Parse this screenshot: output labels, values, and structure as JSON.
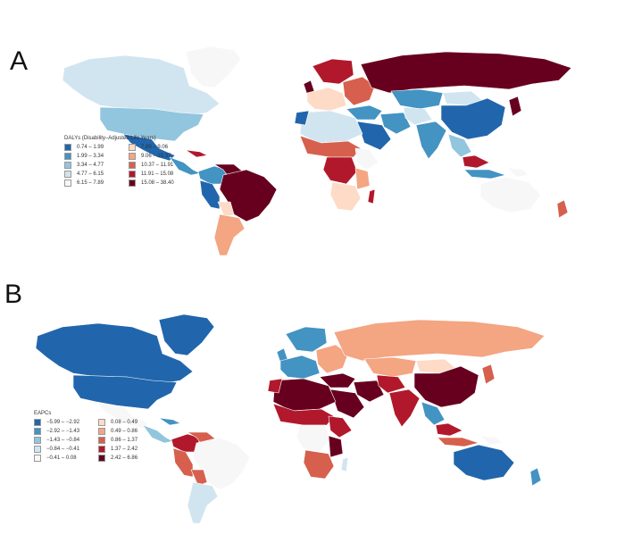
{
  "panels": [
    {
      "letter": "A",
      "legend_title": "DALYs (Disability–Adjusted Life Years)",
      "classes": [
        {
          "label": "0.74 – 1.99",
          "color": "#2166ac"
        },
        {
          "label": "1.99 – 3.34",
          "color": "#4393c3"
        },
        {
          "label": "3.34 – 4.77",
          "color": "#92c5de"
        },
        {
          "label": "4.77 – 6.15",
          "color": "#d1e5f0"
        },
        {
          "label": "6.15 – 7.89",
          "color": "#f7f7f7"
        },
        {
          "label": "7.89 – 9.06",
          "color": "#fddbc7"
        },
        {
          "label": "9.06 – 10.37",
          "color": "#f4a582"
        },
        {
          "label": "10.37 – 11.91",
          "color": "#d6604d"
        },
        {
          "label": "11.91 – 15.08",
          "color": "#b2182b"
        },
        {
          "label": "15.08 – 38.40",
          "color": "#67001f"
        }
      ]
    },
    {
      "letter": "B",
      "legend_title": "EAPCs",
      "classes": [
        {
          "label": "−5.99 – −2.92",
          "color": "#2166ac"
        },
        {
          "label": "−2.92 – −1.43",
          "color": "#4393c3"
        },
        {
          "label": "−1.43 – −0.84",
          "color": "#92c5de"
        },
        {
          "label": "−0.84 – −0.41",
          "color": "#d1e5f0"
        },
        {
          "label": "−0.41 – 0.08",
          "color": "#f7f7f7"
        },
        {
          "label": "0.08 – 0.49",
          "color": "#fddbc7"
        },
        {
          "label": "0.49 – 0.86",
          "color": "#f4a582"
        },
        {
          "label": "0.86 – 1.37",
          "color": "#d6604d"
        },
        {
          "label": "1.37 – 2.42",
          "color": "#b2182b"
        },
        {
          "label": "2.42 – 6.86",
          "color": "#67001f"
        }
      ]
    }
  ]
}
